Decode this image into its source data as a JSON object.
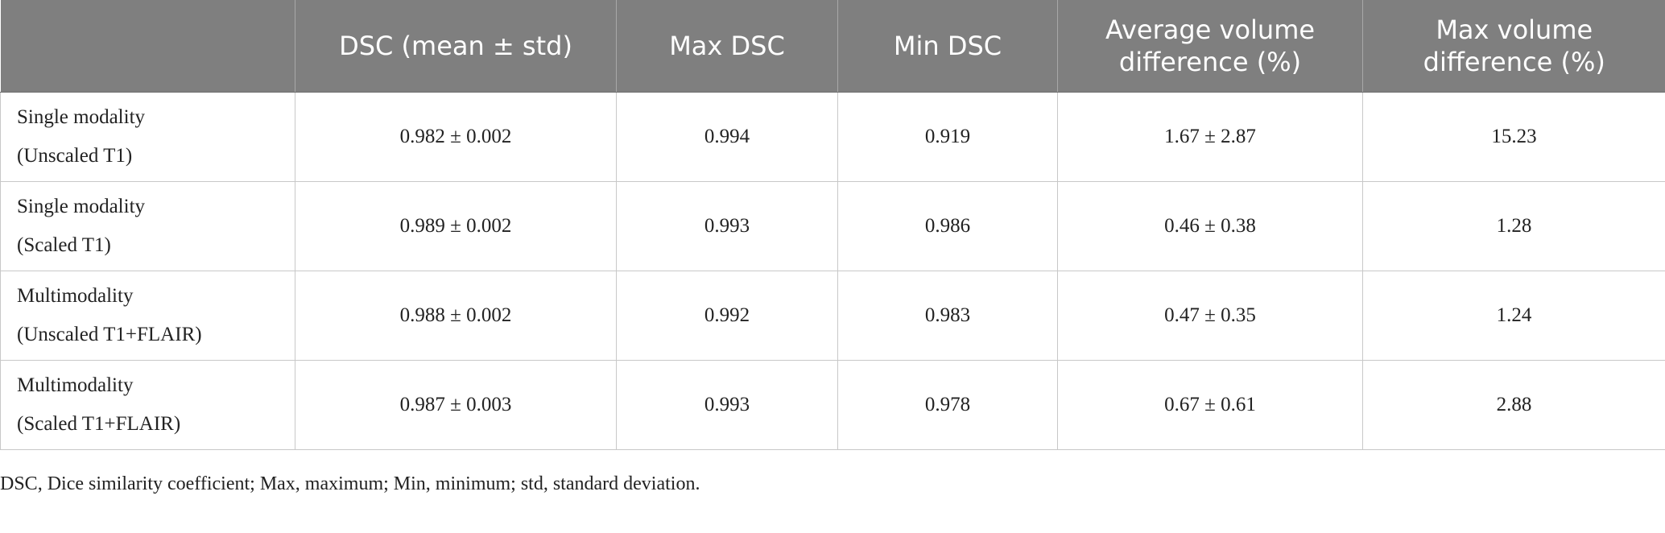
{
  "table": {
    "headers": [
      "",
      "DSC (mean ± std)",
      "Max DSC",
      "Min DSC",
      "Average volume difference (%)",
      "Max volume difference (%)"
    ],
    "rows": [
      {
        "label_line1": "Single modality",
        "label_line2": "(Unscaled T1)",
        "dsc": "0.982 ± 0.002",
        "max_dsc": "0.994",
        "min_dsc": "0.919",
        "avg_vol_diff": "1.67 ± 2.87",
        "max_vol_diff": "15.23"
      },
      {
        "label_line1": "Single modality",
        "label_line2": "(Scaled T1)",
        "dsc": "0.989 ± 0.002",
        "max_dsc": "0.993",
        "min_dsc": "0.986",
        "avg_vol_diff": "0.46 ± 0.38",
        "max_vol_diff": "1.28"
      },
      {
        "label_line1": "Multimodality",
        "label_line2": "(Unscaled T1+FLAIR)",
        "dsc": "0.988 ± 0.002",
        "max_dsc": "0.992",
        "min_dsc": "0.983",
        "avg_vol_diff": "0.47 ± 0.35",
        "max_vol_diff": "1.24"
      },
      {
        "label_line1": "Multimodality",
        "label_line2": "(Scaled T1+FLAIR)",
        "dsc": "0.987 ± 0.003",
        "max_dsc": "0.993",
        "min_dsc": "0.978",
        "avg_vol_diff": "0.67 ± 0.61",
        "max_vol_diff": "2.88"
      }
    ]
  },
  "footnote": "DSC, Dice similarity coefficient; Max, maximum; Min, minimum; std, standard deviation.",
  "colors": {
    "header_background": "#7f7f7f",
    "header_text": "#ffffff",
    "grid_lines": "#c8c8c8"
  }
}
